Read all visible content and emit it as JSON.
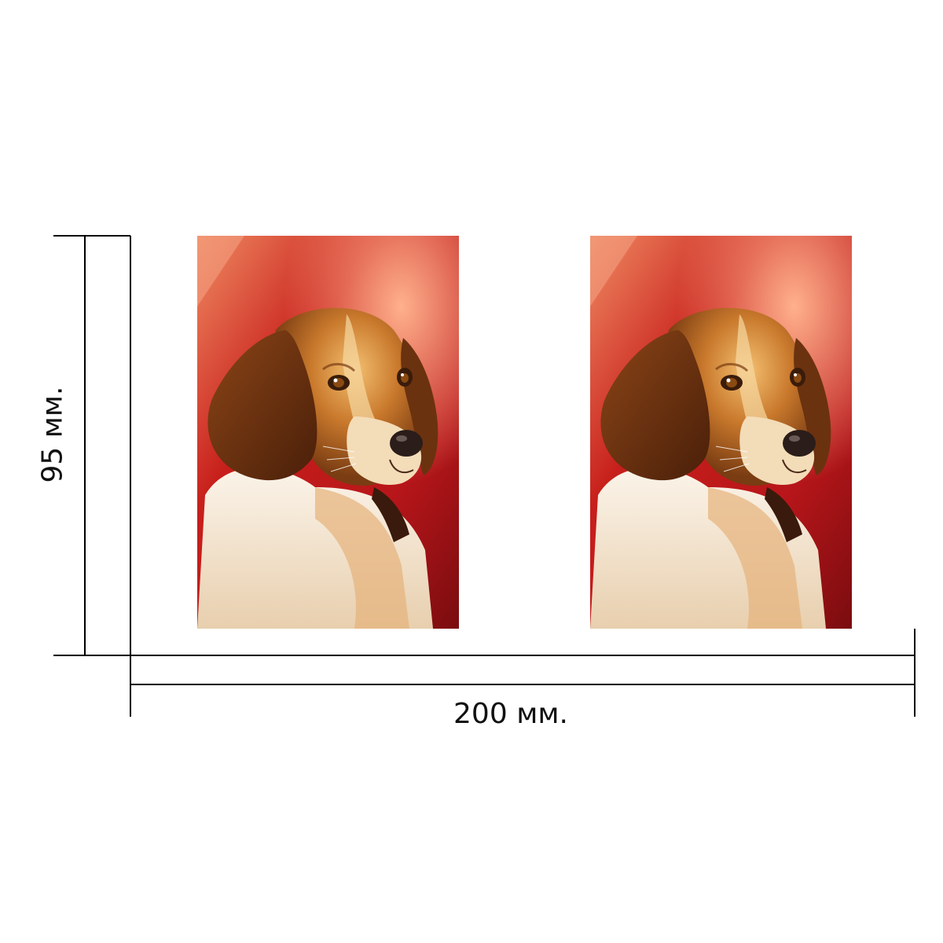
{
  "dimensions": {
    "width_label": "200 мм.",
    "height_label": "95 мм."
  },
  "photos": [
    {
      "subject": "beagle-dog-portrait",
      "background": "red"
    },
    {
      "subject": "beagle-dog-portrait",
      "background": "red"
    }
  ],
  "colors": {
    "line": "#000000",
    "background_red": "#c81e1a",
    "dog_brown": "#7a3c12",
    "dog_tan": "#c97a2c",
    "dog_white": "#f4efe9"
  }
}
